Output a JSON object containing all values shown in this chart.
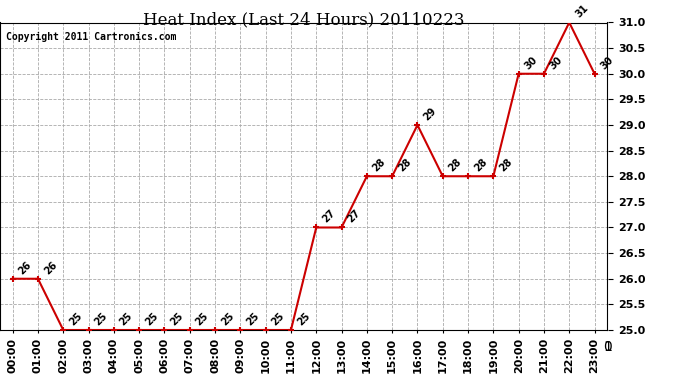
{
  "title": "Heat Index (Last 24 Hours) 20110223",
  "copyright": "Copyright 2011 Cartronics.com",
  "x_labels": [
    "00:00",
    "01:00",
    "02:00",
    "03:00",
    "04:00",
    "05:00",
    "06:00",
    "07:00",
    "08:00",
    "09:00",
    "10:00",
    "11:00",
    "12:00",
    "13:00",
    "14:00",
    "15:00",
    "16:00",
    "17:00",
    "18:00",
    "19:00",
    "20:00",
    "21:00",
    "22:00",
    "23:00"
  ],
  "y_values": [
    26,
    26,
    25,
    25,
    25,
    25,
    25,
    25,
    25,
    25,
    25,
    25,
    27,
    27,
    28,
    28,
    29,
    28,
    28,
    28,
    30,
    30,
    31,
    30
  ],
  "ylim": [
    25.0,
    31.0
  ],
  "yticks": [
    25.0,
    25.5,
    26.0,
    26.5,
    27.0,
    27.5,
    28.0,
    28.5,
    29.0,
    29.5,
    30.0,
    30.5,
    31.0
  ],
  "line_color": "#cc0000",
  "marker_color": "#cc0000",
  "bg_color": "#ffffff",
  "grid_color": "#aaaaaa",
  "title_fontsize": 12,
  "copyright_fontsize": 7,
  "label_fontsize": 8,
  "annotation_fontsize": 7,
  "ytick_labels": [
    "25.0",
    "25.5",
    "26.0",
    "26.5",
    "27.0",
    "27.5",
    "28.0",
    "28.5",
    "29.0",
    "29.5",
    "30.0",
    "30.5",
    "31.0"
  ]
}
